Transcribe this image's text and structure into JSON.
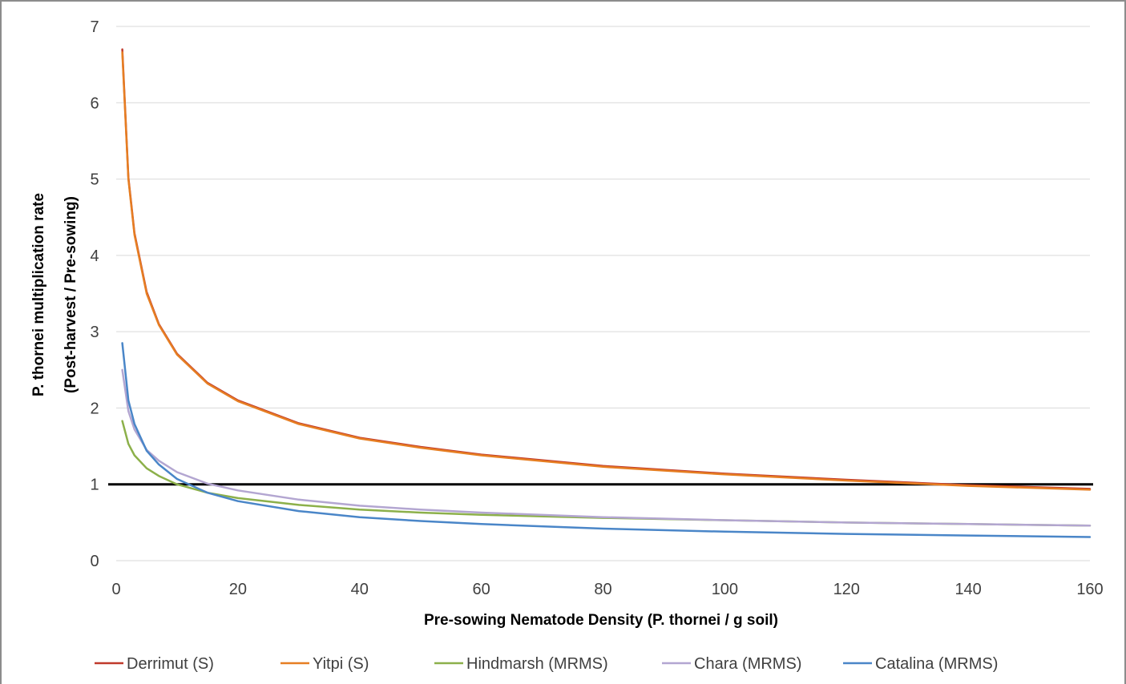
{
  "chart_data": {
    "type": "line",
    "title": "",
    "xlabel": "Pre-sowing Nematode Density (P. thornei / g soil)",
    "ylabel_lines": [
      "P. thornei multiplication rate",
      "(Post-harvest / Pre-sowing)"
    ],
    "xlim": [
      0,
      160
    ],
    "ylim": [
      0,
      7
    ],
    "x_ticks": [
      "0",
      "20",
      "40",
      "60",
      "80",
      "100",
      "120",
      "140",
      "160"
    ],
    "y_ticks": [
      "0",
      "1",
      "2",
      "3",
      "4",
      "5",
      "6",
      "7"
    ],
    "grid": "horizontal",
    "legend_position": "bottom",
    "reference_line": {
      "y": 1,
      "color": "#000000"
    },
    "series": [
      {
        "name": "Derrimut (S)",
        "color": "#c0392b",
        "x": [
          1,
          2,
          3,
          5,
          7,
          10,
          15,
          20,
          30,
          40,
          50,
          60,
          80,
          100,
          120,
          140,
          160
        ],
        "y": [
          6.7,
          5.02,
          4.29,
          3.52,
          3.1,
          2.71,
          2.33,
          2.1,
          1.8,
          1.61,
          1.49,
          1.39,
          1.24,
          1.14,
          1.06,
          0.99,
          0.94
        ]
      },
      {
        "name": "Yitpi (S)",
        "color": "#e67e22",
        "x": [
          1,
          2,
          3,
          5,
          7,
          10,
          15,
          20,
          30,
          40,
          50,
          60,
          80,
          100,
          120,
          140,
          160
        ],
        "y": [
          6.66,
          5.0,
          4.27,
          3.5,
          3.09,
          2.7,
          2.32,
          2.09,
          1.79,
          1.6,
          1.48,
          1.38,
          1.23,
          1.13,
          1.05,
          0.98,
          0.93
        ]
      },
      {
        "name": "Hindmarsh (MRMS)",
        "color": "#8cb04a",
        "x": [
          1,
          2,
          3,
          5,
          7,
          10,
          15,
          20,
          30,
          40,
          50,
          60,
          80,
          100,
          120,
          140,
          160
        ],
        "y": [
          1.83,
          1.53,
          1.38,
          1.21,
          1.11,
          1.0,
          0.89,
          0.82,
          0.73,
          0.67,
          0.63,
          0.6,
          0.56,
          0.53,
          0.5,
          0.48,
          0.46
        ]
      },
      {
        "name": "Chara (MRMS)",
        "color": "#b3a6d1",
        "x": [
          1,
          2,
          3,
          5,
          7,
          10,
          15,
          20,
          30,
          40,
          50,
          60,
          80,
          100,
          120,
          140,
          160
        ],
        "y": [
          2.5,
          1.96,
          1.72,
          1.45,
          1.31,
          1.16,
          1.01,
          0.92,
          0.8,
          0.72,
          0.67,
          0.63,
          0.57,
          0.53,
          0.5,
          0.48,
          0.46
        ]
      },
      {
        "name": "Catalina (MRMS)",
        "color": "#4a86c8",
        "x": [
          1,
          2,
          3,
          5,
          7,
          10,
          15,
          20,
          30,
          40,
          50,
          60,
          80,
          100,
          120,
          140,
          160
        ],
        "y": [
          2.85,
          2.1,
          1.79,
          1.44,
          1.26,
          1.07,
          0.89,
          0.78,
          0.65,
          0.57,
          0.52,
          0.48,
          0.42,
          0.38,
          0.35,
          0.33,
          0.31
        ]
      }
    ]
  }
}
